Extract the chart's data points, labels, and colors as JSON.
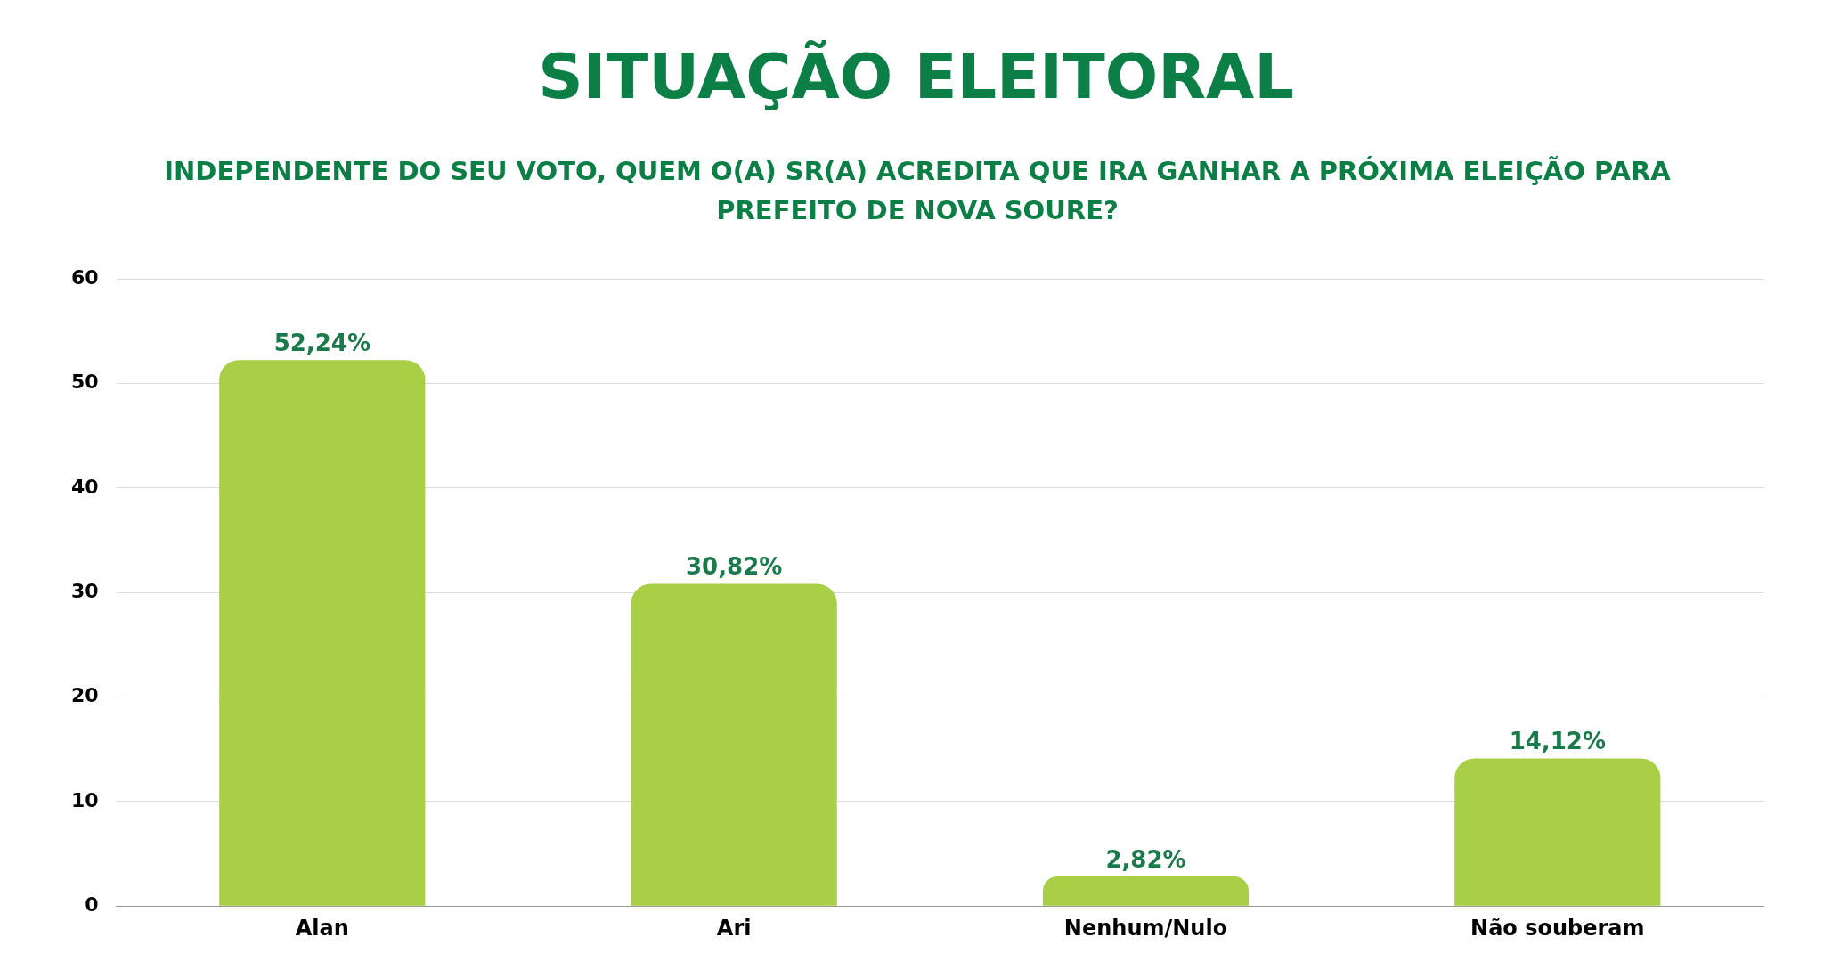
{
  "chart_data": {
    "type": "bar",
    "title": "SITUAÇÃO ELEITORAL",
    "subtitle": "INDEPENDENTE DO SEU VOTO, QUEM O(A) SR(A) ACREDITA QUE IRA GANHAR A PRÓXIMA ELEIÇÃO PARA PREFEITO DE NOVA SOURE?",
    "categories": [
      "Alan",
      "Ari",
      "Nenhum/Nulo",
      "Não souberam"
    ],
    "values": [
      52.24,
      30.82,
      2.82,
      14.12
    ],
    "value_labels": [
      "52,24%",
      "30,82%",
      "2,82%",
      "14,12%"
    ],
    "color": "#a8cf45",
    "ylim": [
      0,
      60
    ],
    "yticks": [
      0,
      10,
      20,
      30,
      40,
      50,
      60
    ],
    "grid": "y",
    "legend": false
  }
}
